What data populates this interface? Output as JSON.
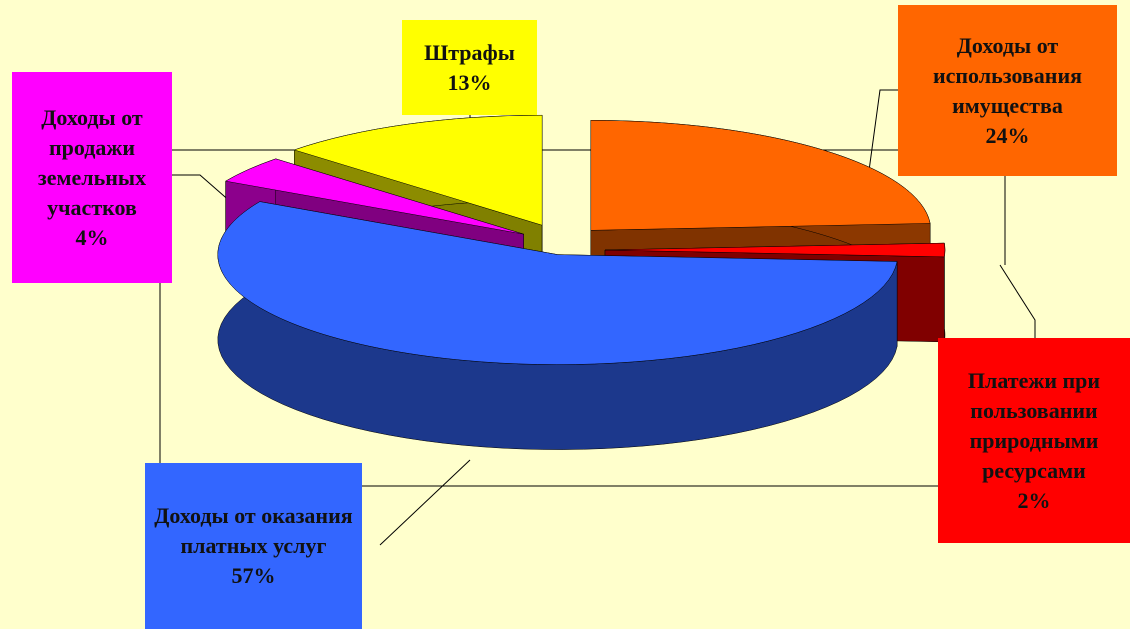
{
  "chart_data": {
    "type": "pie",
    "categories": [
      "Доходы от использования имущества",
      "Платежи при пользовании природными ресурсами",
      "Доходы от оказания платных услуг",
      "Доходы от продажи земельных участков",
      "Штрафы"
    ],
    "values": [
      24,
      2,
      57,
      4,
      13
    ],
    "value_labels": [
      "24%",
      "2%",
      "57%",
      "4%",
      "13%"
    ],
    "colors": [
      "#ff6600",
      "#ff0000",
      "#3366ff",
      "#ff00ff",
      "#ffff00"
    ]
  }
}
